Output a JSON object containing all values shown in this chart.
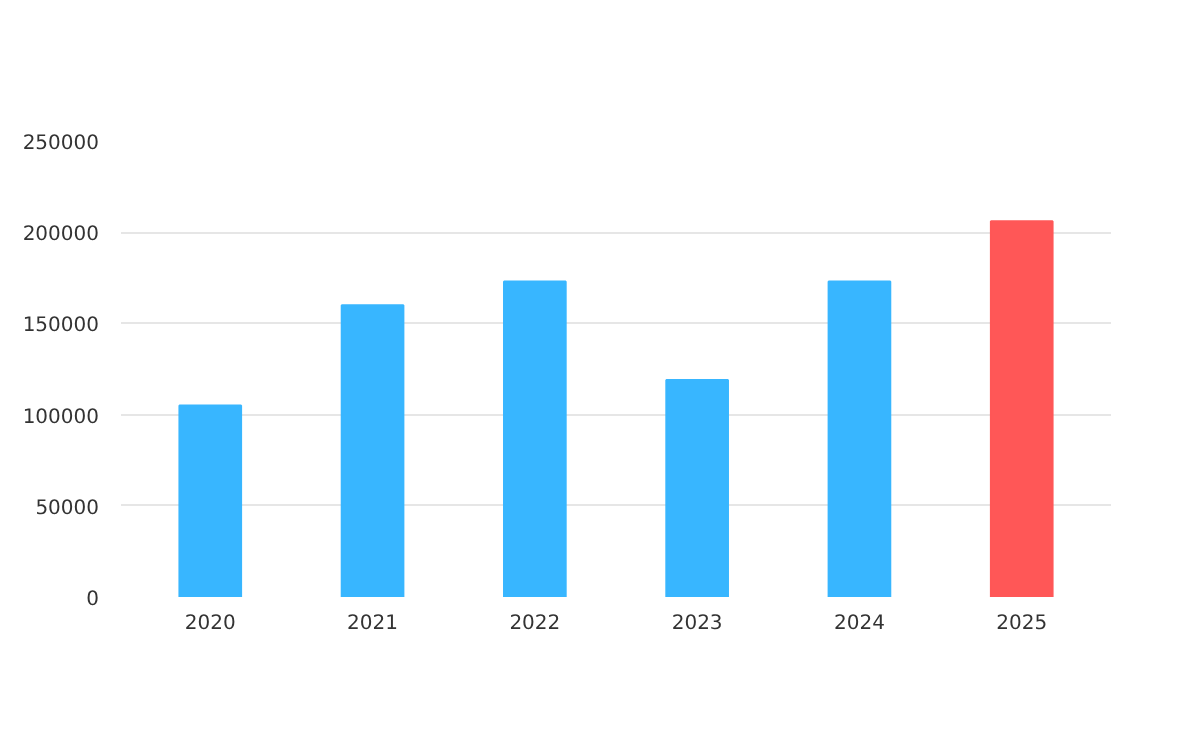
{
  "chart_data": {
    "type": "bar",
    "categories": [
      "2020",
      "2021",
      "2022",
      "2023",
      "2024",
      "2025"
    ],
    "values": [
      105000,
      160000,
      173000,
      119000,
      173000,
      206000
    ],
    "colors": [
      "#38b6ff",
      "#38b6ff",
      "#38b6ff",
      "#38b6ff",
      "#38b6ff",
      "#ff5757"
    ],
    "ylim": [
      0,
      250000
    ],
    "yticks": [
      0,
      50000,
      100000,
      150000,
      200000,
      250000
    ],
    "grid": "y"
  }
}
